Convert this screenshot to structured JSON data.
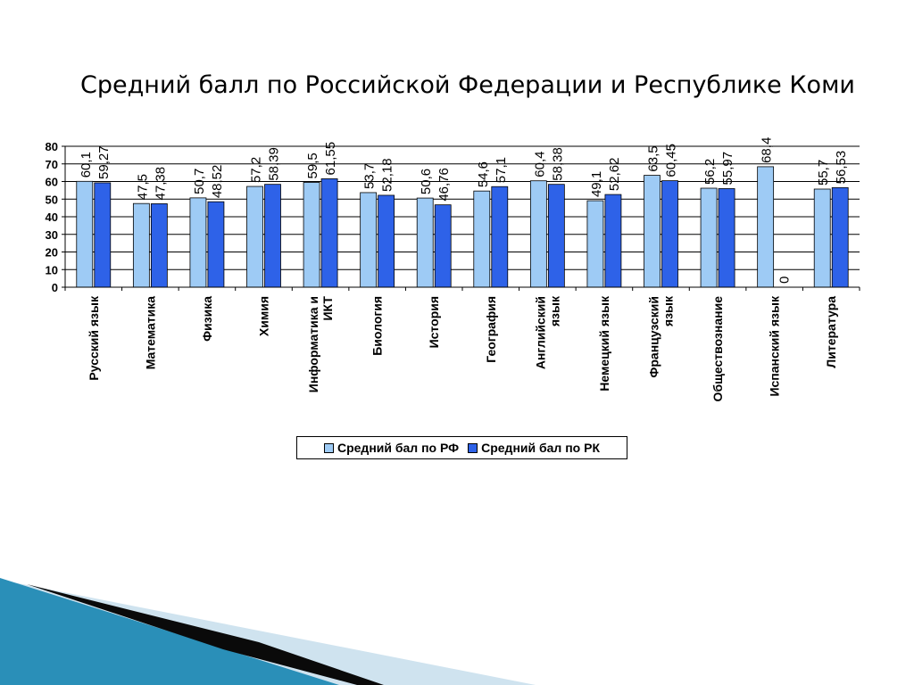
{
  "slide": {
    "title": "Средний балл по Российской Федерации и Республике Коми"
  },
  "colors": {
    "series_rf": "#9ecbf5",
    "series_rk": "#2e62e8",
    "decor_dark": "#0a0a0a",
    "decor_blue": "#2a8fb8",
    "decor_light": "#cfe3ef"
  },
  "chart_data": {
    "type": "bar",
    "title": "Средний балл по Российской Федерации и Республике Коми",
    "categories": [
      [
        "Русский язык"
      ],
      [
        "Математика"
      ],
      [
        "Физика"
      ],
      [
        "Химия"
      ],
      [
        "Информатика и",
        "ИКТ"
      ],
      [
        "Биология"
      ],
      [
        "История"
      ],
      [
        "География"
      ],
      [
        "Английский",
        "язык"
      ],
      [
        "Немецкий язык"
      ],
      [
        "Французский",
        "язык"
      ],
      [
        "Обществознание"
      ],
      [
        "Испанский язык"
      ],
      [
        "Литература"
      ]
    ],
    "series": [
      {
        "name": "Средний бал по РФ",
        "values": [
          60.1,
          47.5,
          50.7,
          57.2,
          59.5,
          53.7,
          50.6,
          54.6,
          60.4,
          49.1,
          63.5,
          56.2,
          68.4,
          55.7
        ],
        "labels": [
          "60,1",
          "47,5",
          "50,7",
          "57,2",
          "59,5",
          "53,7",
          "50,6",
          "54,6",
          "60,4",
          "49,1",
          "63,5",
          "56,2",
          "68,4",
          "55,7"
        ]
      },
      {
        "name": "Средний бал по РК",
        "values": [
          59.27,
          47.38,
          48.52,
          58.39,
          61.55,
          52.18,
          46.76,
          57.1,
          58.38,
          52.62,
          60.45,
          55.97,
          0,
          56.53
        ],
        "labels": [
          "59,27",
          "47,38",
          "48,52",
          "58,39",
          "61,55",
          "52,18",
          "46,76",
          "57,1",
          "58,38",
          "52,62",
          "60,45",
          "55,97",
          "0",
          "56,53"
        ]
      }
    ],
    "y_ticks": [
      "0",
      "10",
      "20",
      "30",
      "40",
      "50",
      "60",
      "70",
      "80"
    ],
    "ylim": [
      0,
      80
    ],
    "grid": true,
    "legend_position": "bottom"
  }
}
